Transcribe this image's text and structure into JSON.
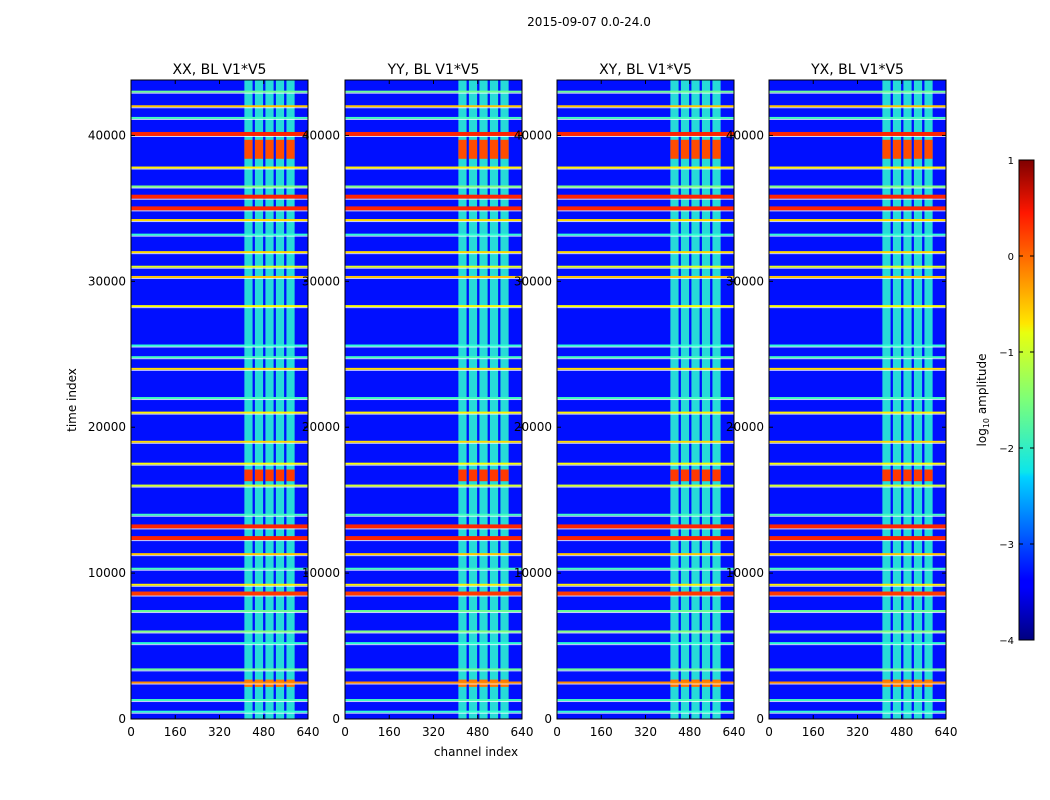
{
  "chart_data": {
    "type": "heatmap",
    "suptitle": "2015-09-07 0.0-24.0",
    "xlabel": "channel index",
    "ylabel": "time index",
    "xlim": [
      0,
      640
    ],
    "ylim": [
      0,
      43800
    ],
    "xticks": [
      0,
      160,
      320,
      480,
      640
    ],
    "yticks": [
      0,
      10000,
      20000,
      30000,
      40000
    ],
    "xtick_labels": [
      "0",
      "160",
      "320",
      "480",
      "640"
    ],
    "ytick_labels": [
      "0",
      "10000",
      "20000",
      "30000",
      "40000"
    ],
    "panels": [
      {
        "title": "XX, BL V1*V5"
      },
      {
        "title": "YY, BL V1*V5"
      },
      {
        "title": "XY, BL V1*V5"
      },
      {
        "title": "YX, BL V1*V5"
      }
    ],
    "colorbar": {
      "label_prefix": "log",
      "label_sub": "10",
      "label_suffix": " amplitude",
      "range": [
        -4,
        1
      ],
      "ticks": [
        1,
        0,
        -1,
        -2,
        -3,
        -4
      ],
      "tick_labels": [
        "1",
        "0",
        "−1",
        "−2",
        "−3",
        "−4"
      ],
      "colormap": "jet"
    },
    "background_level": -3.3,
    "signal_channel_range": [
      410,
      600
    ],
    "signal_level": -1.9,
    "strong_bands": [
      {
        "t_start": 38400,
        "t_end": 39700,
        "level": 0.0
      },
      {
        "t_start": 16300,
        "t_end": 17100,
        "level": 0.1
      },
      {
        "t_start": 2200,
        "t_end": 2700,
        "level": -0.2
      }
    ],
    "rfi_lines": [
      {
        "t": 43000,
        "level": -1.6
      },
      {
        "t": 42000,
        "level": -0.6
      },
      {
        "t": 41200,
        "level": -1.8
      },
      {
        "t": 40100,
        "level": 0.2
      },
      {
        "t": 37800,
        "level": -0.8
      },
      {
        "t": 36500,
        "level": -1.5
      },
      {
        "t": 35800,
        "level": 0.2
      },
      {
        "t": 35000,
        "level": 0.2
      },
      {
        "t": 34200,
        "level": -0.7
      },
      {
        "t": 33200,
        "level": -1.9
      },
      {
        "t": 32000,
        "level": -0.7
      },
      {
        "t": 31000,
        "level": -1.0
      },
      {
        "t": 30300,
        "level": -0.6
      },
      {
        "t": 28300,
        "level": -0.9
      },
      {
        "t": 25600,
        "level": -1.9
      },
      {
        "t": 24800,
        "level": -1.8
      },
      {
        "t": 24000,
        "level": -0.7
      },
      {
        "t": 22000,
        "level": -1.8
      },
      {
        "t": 21000,
        "level": -0.8
      },
      {
        "t": 19000,
        "level": -0.7
      },
      {
        "t": 17500,
        "level": -0.9
      },
      {
        "t": 16000,
        "level": -1.1
      },
      {
        "t": 14000,
        "level": -1.8
      },
      {
        "t": 13200,
        "level": 0.2
      },
      {
        "t": 12400,
        "level": 0.2
      },
      {
        "t": 11300,
        "level": -0.6
      },
      {
        "t": 10300,
        "level": -1.8
      },
      {
        "t": 9200,
        "level": -0.8
      },
      {
        "t": 8600,
        "level": 0.1
      },
      {
        "t": 7400,
        "level": -1.6
      },
      {
        "t": 6000,
        "level": -1.5
      },
      {
        "t": 5200,
        "level": -1.9
      },
      {
        "t": 3400,
        "level": -1.6
      },
      {
        "t": 2500,
        "level": -0.3
      },
      {
        "t": 1300,
        "level": -1.8
      },
      {
        "t": 500,
        "level": -1.9
      }
    ]
  }
}
